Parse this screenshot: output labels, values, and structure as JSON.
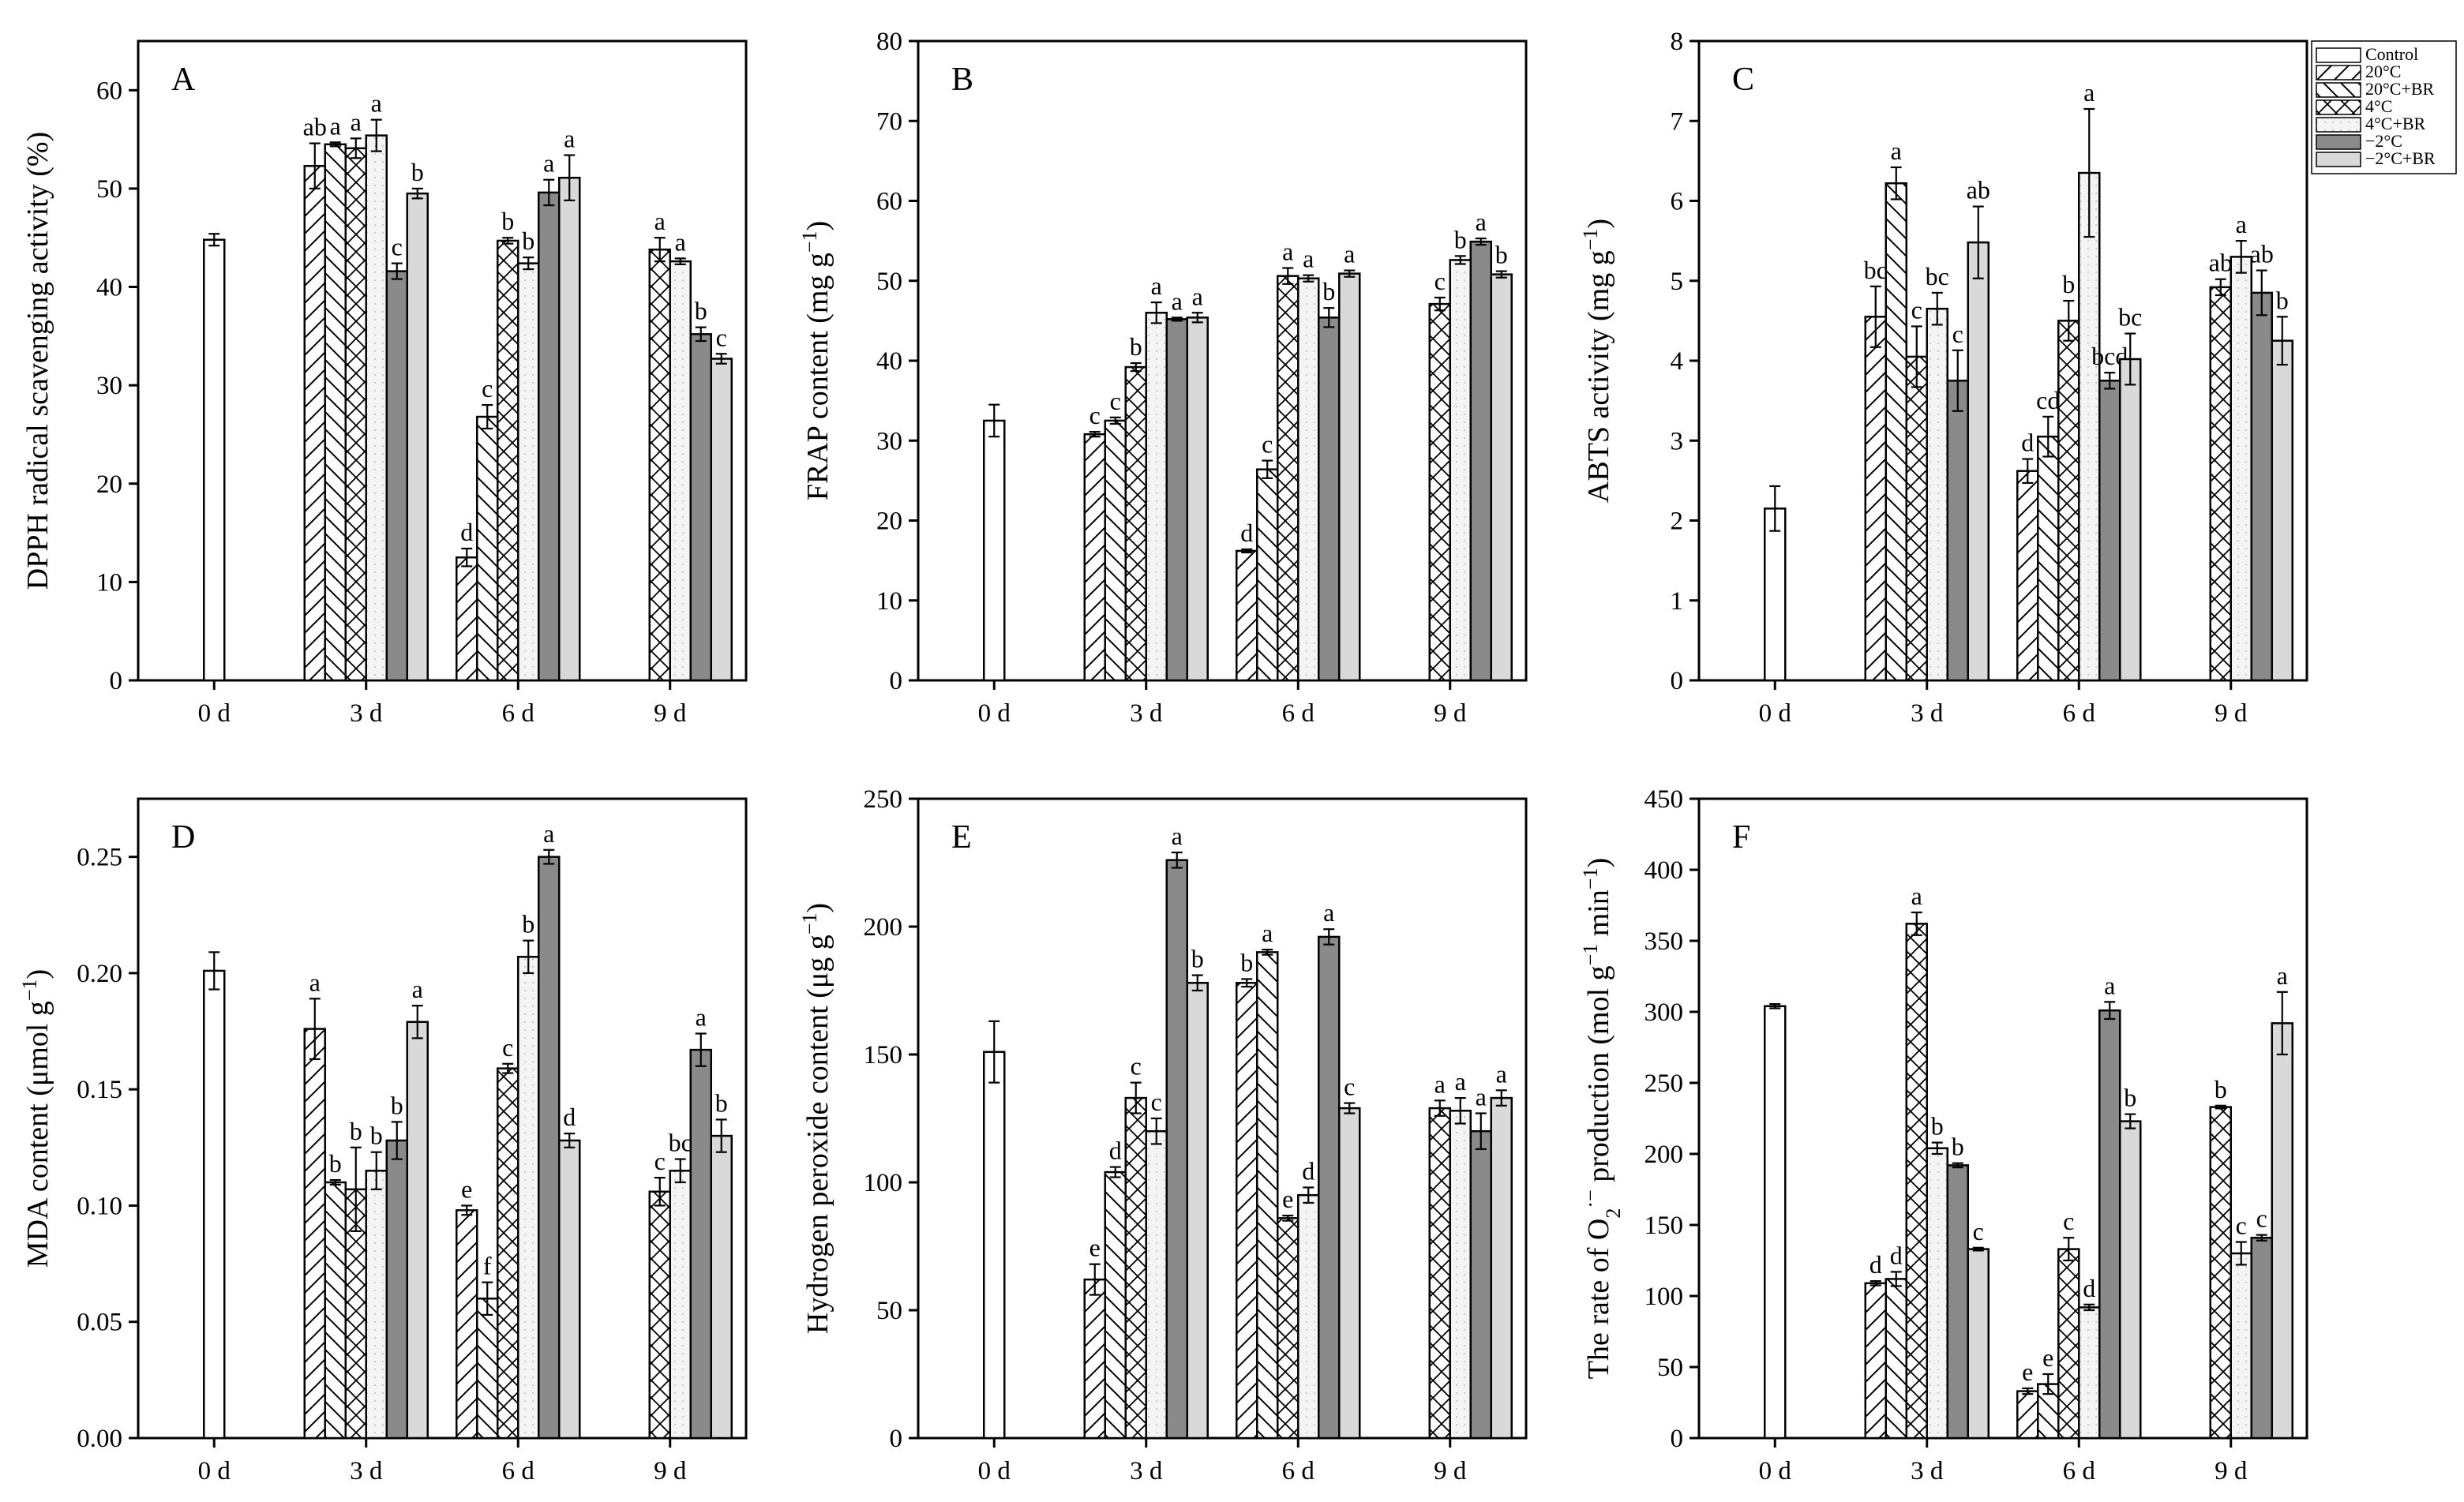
{
  "legend": [
    "Control",
    "20°C",
    "20°C+BR",
    "4°C",
    "4°C+BR",
    "−2°C",
    "−2°C+BR"
  ],
  "colors": {
    "Control": "#ffffff",
    "-2C": "#8a8a8a",
    "-2C_BR": "#d9d9d9",
    "BR4": "#f4f4f4",
    "stroke": "#000000"
  },
  "chart_data": [
    {
      "type": "bar",
      "letter": "A",
      "ylabel": "DPPH radical scavenging activity (%)",
      "yticks": [
        0,
        10,
        20,
        30,
        40,
        50,
        60
      ],
      "ylim": [
        0,
        65
      ],
      "categories": [
        "0 d",
        "3 d",
        "6 d",
        "9 d"
      ],
      "groups": [
        {
          "bars": [
            {
              "s": "Control",
              "v": 44.8,
              "e": 0.6,
              "l": ""
            }
          ]
        },
        {
          "bars": [
            {
              "s": "20°C",
              "v": 52.3,
              "e": 2.3,
              "l": "ab"
            },
            {
              "s": "20°C+BR",
              "v": 54.5,
              "e": 0.2,
              "l": "a"
            },
            {
              "s": "4°C",
              "v": 54.1,
              "e": 1.0,
              "l": "a"
            },
            {
              "s": "4°C+BR",
              "v": 55.4,
              "e": 1.6,
              "l": "a"
            },
            {
              "s": "−2°C",
              "v": 41.6,
              "e": 0.8,
              "l": "c"
            },
            {
              "s": "−2°C+BR",
              "v": 49.5,
              "e": 0.5,
              "l": "b"
            }
          ]
        },
        {
          "bars": [
            {
              "s": "20°C",
              "v": 12.5,
              "e": 0.9,
              "l": "d"
            },
            {
              "s": "20°C+BR",
              "v": 26.8,
              "e": 1.2,
              "l": "c"
            },
            {
              "s": "4°C",
              "v": 44.7,
              "e": 0.3,
              "l": "b"
            },
            {
              "s": "4°C+BR",
              "v": 42.4,
              "e": 0.6,
              "l": "b"
            },
            {
              "s": "−2°C",
              "v": 49.6,
              "e": 1.3,
              "l": "a"
            },
            {
              "s": "−2°C+BR",
              "v": 51.1,
              "e": 2.3,
              "l": "a"
            }
          ]
        },
        {
          "bars": [
            {
              "s": "4°C",
              "v": 43.8,
              "e": 1.2,
              "l": "a"
            },
            {
              "s": "4°C+BR",
              "v": 42.6,
              "e": 0.3,
              "l": "a"
            },
            {
              "s": "−2°C",
              "v": 35.2,
              "e": 0.7,
              "l": "b"
            },
            {
              "s": "−2°C+BR",
              "v": 32.7,
              "e": 0.5,
              "l": "c"
            }
          ]
        }
      ]
    },
    {
      "type": "bar",
      "letter": "B",
      "ylabel": "FRAP content (mg g",
      "ylabel_sup": "−1",
      "ylabel_end": ")",
      "yticks": [
        0,
        10,
        20,
        30,
        40,
        50,
        60,
        70,
        80
      ],
      "ylim": [
        0,
        80
      ],
      "categories": [
        "0 d",
        "3 d",
        "6 d",
        "9 d"
      ],
      "groups": [
        {
          "bars": [
            {
              "s": "Control",
              "v": 32.5,
              "e": 2.0,
              "l": ""
            }
          ]
        },
        {
          "bars": [
            {
              "s": "20°C",
              "v": 30.8,
              "e": 0.3,
              "l": "c"
            },
            {
              "s": "20°C+BR",
              "v": 32.5,
              "e": 0.4,
              "l": "c"
            },
            {
              "s": "4°C",
              "v": 39.2,
              "e": 0.5,
              "l": "b"
            },
            {
              "s": "4°C+BR",
              "v": 46.0,
              "e": 1.3,
              "l": "a"
            },
            {
              "s": "−2°C",
              "v": 45.2,
              "e": 0.2,
              "l": "a"
            },
            {
              "s": "−2°C+BR",
              "v": 45.4,
              "e": 0.6,
              "l": "a"
            }
          ]
        },
        {
          "bars": [
            {
              "s": "20°C",
              "v": 16.2,
              "e": 0.2,
              "l": "d"
            },
            {
              "s": "20°C+BR",
              "v": 26.4,
              "e": 1.1,
              "l": "c"
            },
            {
              "s": "4°C",
              "v": 50.6,
              "e": 1.0,
              "l": "a"
            },
            {
              "s": "4°C+BR",
              "v": 50.3,
              "e": 0.4,
              "l": "a"
            },
            {
              "s": "−2°C",
              "v": 45.4,
              "e": 1.2,
              "l": "b"
            },
            {
              "s": "−2°C+BR",
              "v": 50.9,
              "e": 0.4,
              "l": "a"
            }
          ]
        },
        {
          "bars": [
            {
              "s": "4°C",
              "v": 47.1,
              "e": 0.8,
              "l": "c"
            },
            {
              "s": "4°C+BR",
              "v": 52.6,
              "e": 0.5,
              "l": "b"
            },
            {
              "s": "−2°C",
              "v": 54.9,
              "e": 0.4,
              "l": "a"
            },
            {
              "s": "−2°C+BR",
              "v": 50.8,
              "e": 0.4,
              "l": "b"
            }
          ]
        }
      ]
    },
    {
      "type": "bar",
      "letter": "C",
      "ylabel": "ABTS activity (mg g",
      "ylabel_sup": "−1",
      "ylabel_end": ")",
      "yticks": [
        0,
        1,
        2,
        3,
        4,
        5,
        6,
        7,
        8
      ],
      "ylim": [
        0,
        8
      ],
      "categories": [
        "0 d",
        "3 d",
        "6 d",
        "9 d"
      ],
      "groups": [
        {
          "bars": [
            {
              "s": "Control",
              "v": 2.15,
              "e": 0.28,
              "l": ""
            }
          ]
        },
        {
          "bars": [
            {
              "s": "20°C",
              "v": 4.55,
              "e": 0.38,
              "l": "bc"
            },
            {
              "s": "20°C+BR",
              "v": 6.22,
              "e": 0.2,
              "l": "a"
            },
            {
              "s": "4°C",
              "v": 4.05,
              "e": 0.38,
              "l": "c"
            },
            {
              "s": "4°C+BR",
              "v": 4.65,
              "e": 0.2,
              "l": "bc"
            },
            {
              "s": "−2°C",
              "v": 3.75,
              "e": 0.38,
              "l": "c"
            },
            {
              "s": "−2°C+BR",
              "v": 5.48,
              "e": 0.45,
              "l": "ab"
            }
          ]
        },
        {
          "bars": [
            {
              "s": "20°C",
              "v": 2.62,
              "e": 0.15,
              "l": "d"
            },
            {
              "s": "20°C+BR",
              "v": 3.05,
              "e": 0.25,
              "l": "cd"
            },
            {
              "s": "4°C",
              "v": 4.5,
              "e": 0.25,
              "l": "b"
            },
            {
              "s": "4°C+BR",
              "v": 6.35,
              "e": 0.8,
              "l": "a"
            },
            {
              "s": "−2°C",
              "v": 3.75,
              "e": 0.1,
              "l": "bcd"
            },
            {
              "s": "−2°C+BR",
              "v": 4.02,
              "e": 0.32,
              "l": "bc"
            }
          ]
        },
        {
          "bars": [
            {
              "s": "4°C",
              "v": 4.92,
              "e": 0.1,
              "l": "ab"
            },
            {
              "s": "4°C+BR",
              "v": 5.3,
              "e": 0.2,
              "l": "a"
            },
            {
              "s": "−2°C",
              "v": 4.85,
              "e": 0.28,
              "l": "ab"
            },
            {
              "s": "−2°C+BR",
              "v": 4.25,
              "e": 0.3,
              "l": "b"
            }
          ]
        }
      ]
    },
    {
      "type": "bar",
      "letter": "D",
      "ylabel": "MDA content (μmol g",
      "ylabel_sup": "−1",
      "ylabel_end": ")",
      "yticks": [
        0,
        0.05,
        0.1,
        0.15,
        0.2,
        0.25
      ],
      "ytick_labels": [
        "0.00",
        "0.05",
        "0.10",
        "0.15",
        "0.20",
        "0.25"
      ],
      "ylim": [
        0,
        0.275
      ],
      "categories": [
        "0 d",
        "3 d",
        "6 d",
        "9 d"
      ],
      "groups": [
        {
          "bars": [
            {
              "s": "Control",
              "v": 0.201,
              "e": 0.008,
              "l": ""
            }
          ]
        },
        {
          "bars": [
            {
              "s": "20°C",
              "v": 0.176,
              "e": 0.013,
              "l": "a"
            },
            {
              "s": "20°C+BR",
              "v": 0.11,
              "e": 0.001,
              "l": "b"
            },
            {
              "s": "4°C",
              "v": 0.107,
              "e": 0.018,
              "l": "b"
            },
            {
              "s": "4°C+BR",
              "v": 0.115,
              "e": 0.008,
              "l": "b"
            },
            {
              "s": "−2°C",
              "v": 0.128,
              "e": 0.008,
              "l": "b"
            },
            {
              "s": "−2°C+BR",
              "v": 0.179,
              "e": 0.007,
              "l": "a"
            }
          ]
        },
        {
          "bars": [
            {
              "s": "20°C",
              "v": 0.098,
              "e": 0.002,
              "l": "e"
            },
            {
              "s": "20°C+BR",
              "v": 0.06,
              "e": 0.007,
              "l": "f"
            },
            {
              "s": "4°C",
              "v": 0.159,
              "e": 0.002,
              "l": "c"
            },
            {
              "s": "4°C+BR",
              "v": 0.207,
              "e": 0.007,
              "l": "b"
            },
            {
              "s": "−2°C",
              "v": 0.25,
              "e": 0.003,
              "l": "a"
            },
            {
              "s": "−2°C+BR",
              "v": 0.128,
              "e": 0.003,
              "l": "d"
            }
          ]
        },
        {
          "bars": [
            {
              "s": "4°C",
              "v": 0.106,
              "e": 0.006,
              "l": "c"
            },
            {
              "s": "4°C+BR",
              "v": 0.115,
              "e": 0.005,
              "l": "bc"
            },
            {
              "s": "−2°C",
              "v": 0.167,
              "e": 0.007,
              "l": "a"
            },
            {
              "s": "−2°C+BR",
              "v": 0.13,
              "e": 0.007,
              "l": "b"
            }
          ]
        }
      ]
    },
    {
      "type": "bar",
      "letter": "E",
      "ylabel": "Hydrogen peroxide content (μg g",
      "ylabel_sup": "−1",
      "ylabel_end": ")",
      "yticks": [
        0,
        50,
        100,
        150,
        200,
        250
      ],
      "ylim": [
        0,
        250
      ],
      "categories": [
        "0 d",
        "3 d",
        "6 d",
        "9 d"
      ],
      "groups": [
        {
          "bars": [
            {
              "s": "Control",
              "v": 151,
              "e": 12,
              "l": ""
            }
          ]
        },
        {
          "bars": [
            {
              "s": "20°C",
              "v": 62,
              "e": 6,
              "l": "e"
            },
            {
              "s": "20°C+BR",
              "v": 104,
              "e": 2,
              "l": "d"
            },
            {
              "s": "4°C",
              "v": 133,
              "e": 6,
              "l": "c"
            },
            {
              "s": "4°C+BR",
              "v": 120,
              "e": 5,
              "l": "c"
            },
            {
              "s": "−2°C",
              "v": 226,
              "e": 3,
              "l": "a"
            },
            {
              "s": "−2°C+BR",
              "v": 178,
              "e": 3,
              "l": "b"
            }
          ]
        },
        {
          "bars": [
            {
              "s": "20°C",
              "v": 178,
              "e": 1.5,
              "l": "b"
            },
            {
              "s": "20°C+BR",
              "v": 190,
              "e": 1,
              "l": "a"
            },
            {
              "s": "4°C",
              "v": 86,
              "e": 1,
              "l": "e"
            },
            {
              "s": "4°C+BR",
              "v": 95,
              "e": 3,
              "l": "d"
            },
            {
              "s": "−2°C",
              "v": 196,
              "e": 3,
              "l": "a"
            },
            {
              "s": "−2°C+BR",
              "v": 129,
              "e": 2,
              "l": "c"
            }
          ]
        },
        {
          "bars": [
            {
              "s": "4°C",
              "v": 129,
              "e": 3,
              "l": "a"
            },
            {
              "s": "4°C+BR",
              "v": 128,
              "e": 5,
              "l": "a"
            },
            {
              "s": "−2°C",
              "v": 120,
              "e": 7,
              "l": "a"
            },
            {
              "s": "−2°C+BR",
              "v": 133,
              "e": 3,
              "l": "a"
            }
          ]
        }
      ]
    },
    {
      "type": "bar",
      "letter": "F",
      "ylabel": "The rate of O",
      "ylabel_sub": "2",
      "ylabel_sup2": "·−",
      "ylabel_mid": " production  (mol g",
      "ylabel_sup": "−1",
      "ylabel_mid2": " min",
      "ylabel_sup3": "−1",
      "ylabel_end": ")",
      "yticks": [
        0,
        50,
        100,
        150,
        200,
        250,
        300,
        350,
        400,
        450
      ],
      "ylim": [
        0,
        450
      ],
      "categories": [
        "0 d",
        "3 d",
        "6 d",
        "9 d"
      ],
      "groups": [
        {
          "bars": [
            {
              "s": "Control",
              "v": 304,
              "e": 1.5,
              "l": ""
            }
          ]
        },
        {
          "bars": [
            {
              "s": "20°C",
              "v": 109,
              "e": 1.5,
              "l": "d"
            },
            {
              "s": "20°C+BR",
              "v": 112,
              "e": 5,
              "l": "d"
            },
            {
              "s": "4°C",
              "v": 362,
              "e": 8,
              "l": "a"
            },
            {
              "s": "4°C+BR",
              "v": 204,
              "e": 4,
              "l": "b"
            },
            {
              "s": "−2°C",
              "v": 192,
              "e": 1.5,
              "l": "b"
            },
            {
              "s": "−2°C+BR",
              "v": 133,
              "e": 1,
              "l": "c"
            }
          ]
        },
        {
          "bars": [
            {
              "s": "20°C",
              "v": 33,
              "e": 2,
              "l": "e"
            },
            {
              "s": "20°C+BR",
              "v": 38,
              "e": 7,
              "l": "e"
            },
            {
              "s": "4°C",
              "v": 133,
              "e": 8,
              "l": "c"
            },
            {
              "s": "4°C+BR",
              "v": 92,
              "e": 2,
              "l": "d"
            },
            {
              "s": "−2°C",
              "v": 301,
              "e": 6,
              "l": "a"
            },
            {
              "s": "−2°C+BR",
              "v": 223,
              "e": 5,
              "l": "b"
            }
          ]
        },
        {
          "bars": [
            {
              "s": "4°C",
              "v": 233,
              "e": 1,
              "l": "b"
            },
            {
              "s": "4°C+BR",
              "v": 130,
              "e": 8,
              "l": "c"
            },
            {
              "s": "−2°C",
              "v": 141,
              "e": 2,
              "l": "c"
            },
            {
              "s": "−2°C+BR",
              "v": 292,
              "e": 22,
              "l": "a"
            }
          ]
        }
      ]
    }
  ]
}
